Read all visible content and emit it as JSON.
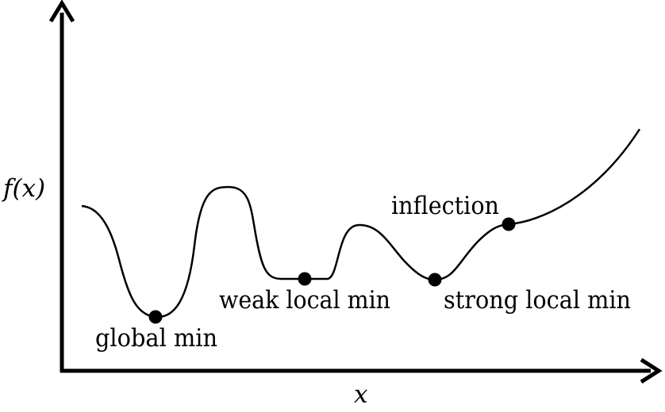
{
  "axes": {
    "x_label": "x",
    "y_label": "f(x)"
  },
  "points": [
    {
      "name": "global-min",
      "label": "global min"
    },
    {
      "name": "weak-local-min",
      "label": "weak local min"
    },
    {
      "name": "strong-local-min",
      "label": "strong local min"
    },
    {
      "name": "inflection",
      "label": "inflection"
    }
  ],
  "style": {
    "stroke_color": "#000000",
    "background": "#ffffff"
  }
}
